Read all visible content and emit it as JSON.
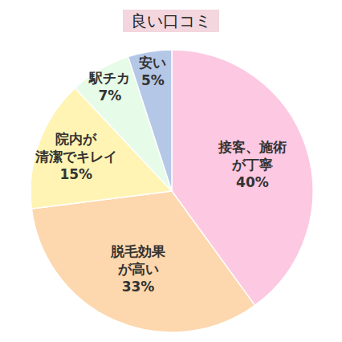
{
  "chart_data": {
    "type": "pie",
    "title": "良い口コミ",
    "categories": [
      "接客、施術\nが丁寧",
      "脱毛効果\nが高い",
      "院内が\n清潔でキレイ",
      "駅チカ",
      "安い"
    ],
    "values": [
      40,
      33,
      15,
      7,
      5
    ],
    "value_labels": [
      "40%",
      "33%",
      "15%",
      "7%",
      "5%"
    ],
    "colors": [
      "#fdc8e1",
      "#fdd7ad",
      "#fff4b3",
      "#e6fbe8",
      "#b4c7e7"
    ],
    "data_labels": true
  }
}
